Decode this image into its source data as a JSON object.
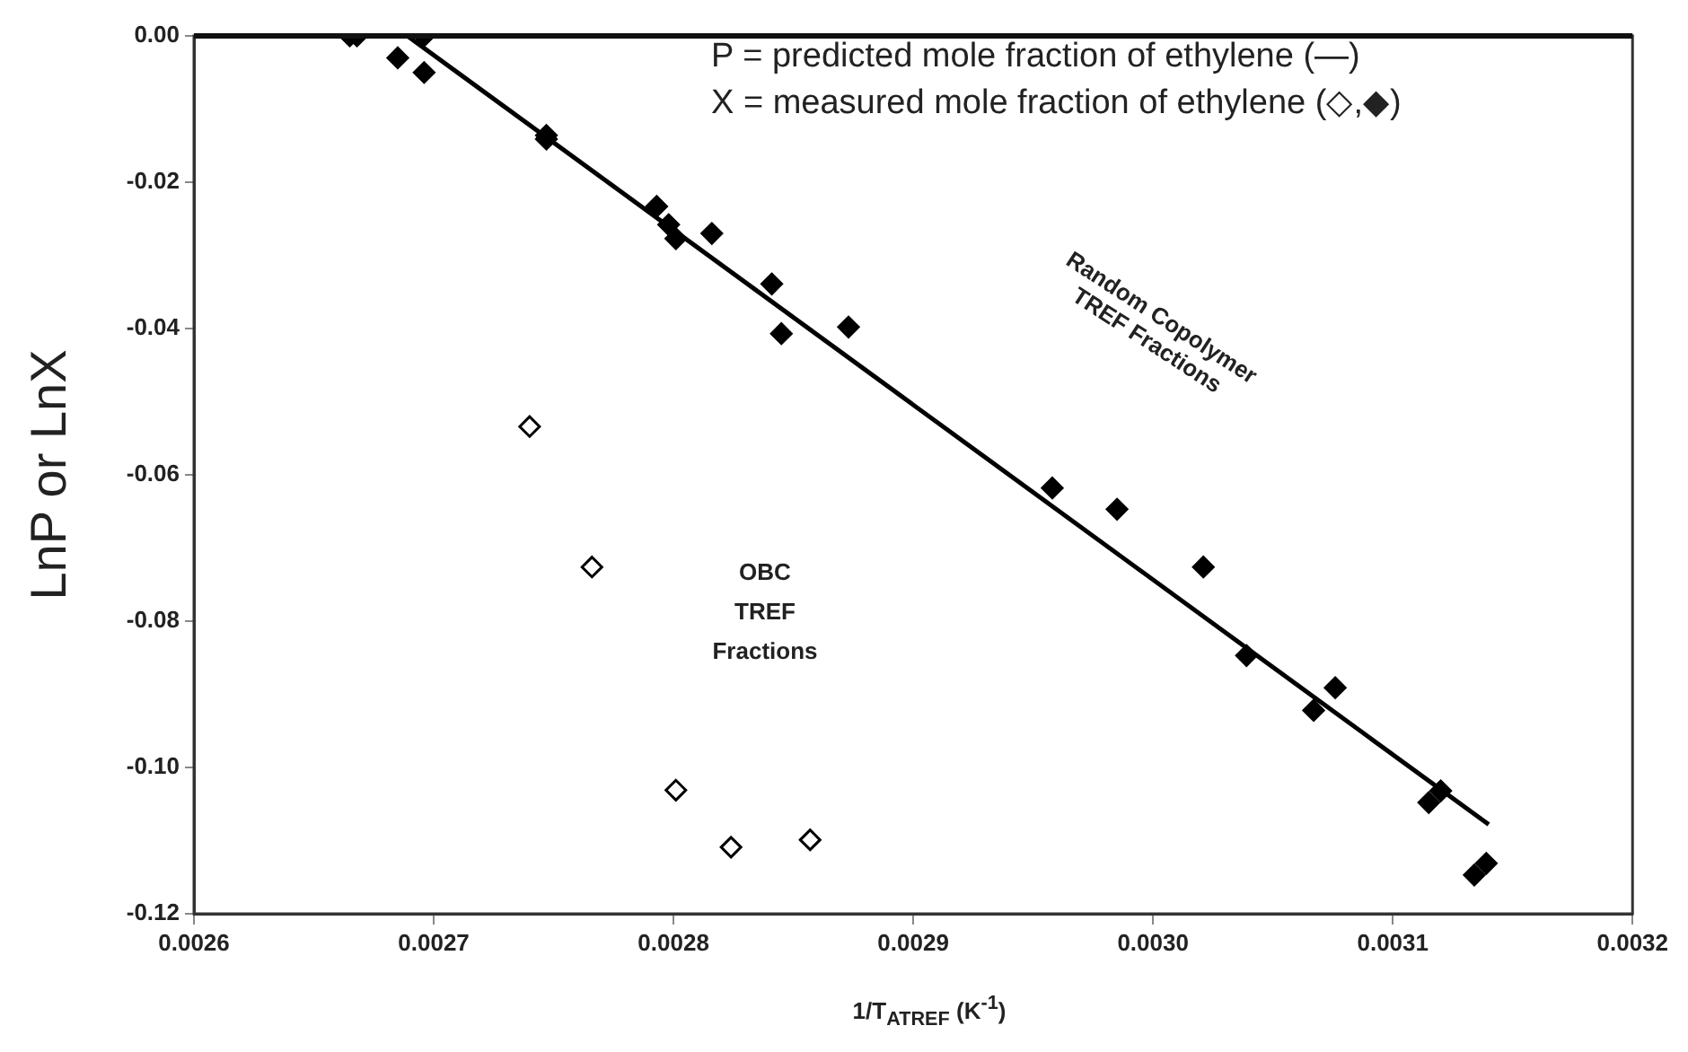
{
  "chart_data": {
    "type": "scatter",
    "ylabel": "LnP or LnX",
    "xlabel": "1/T$_{ATREF}$ (K$^{-1}$)",
    "xlim": [
      0.0026,
      0.0032
    ],
    "xticks": [
      0.0026,
      0.0027,
      0.0028,
      0.0029,
      {
        "value": 0.003,
        "label": "0.0030"
      },
      0.0031,
      0.0032
    ],
    "ylim": [
      -0.12,
      0
    ],
    "yticks": [
      {
        "value": -0.12,
        "label": "-0.12"
      },
      {
        "value": -0.1,
        "label": "-0.10"
      },
      {
        "value": -0.08,
        "label": "-0.08"
      },
      {
        "value": -0.06,
        "label": "-0.06"
      },
      {
        "value": -0.04,
        "label": "-0.04"
      },
      {
        "value": -0.02,
        "label": "-0.02"
      },
      {
        "value": 0,
        "label": "0.00"
      }
    ],
    "grid": false,
    "legend": false,
    "series": [
      {
        "type": "scatter",
        "marker": "diamond",
        "color": "#000000",
        "x": [
          0.002665,
          0.002668,
          0.002696,
          0.002685,
          0.002696,
          0.002747,
          0.002747,
          0.002793,
          0.002798,
          0.002801,
          0.002816,
          0.002841,
          0.002845,
          0.002873,
          0.002958,
          0.002985,
          0.003021,
          0.003039,
          0.003067,
          0.003076,
          0.003115,
          0.00312,
          0.003134,
          0.003139
        ],
        "values": [
          0,
          0,
          0,
          -0.003,
          -0.005,
          -0.0136,
          -0.0141,
          -0.0233,
          -0.0258,
          -0.0277,
          -0.027,
          -0.0339,
          -0.0407,
          -0.0398,
          -0.0618,
          -0.0647,
          -0.0726,
          -0.0847,
          -0.0922,
          -0.0891,
          -0.1048,
          -0.1032,
          -0.1147,
          -0.1131
        ]
      },
      {
        "type": "scatter",
        "marker": "diamond",
        "color": "#000000",
        "x": [
          0.00274,
          0.002766,
          0.002801,
          0.002824,
          0.002857
        ],
        "values": [
          -0.0534,
          -0.0726,
          -0.1031,
          -0.1109,
          -0.1099
        ]
      },
      {
        "type": "line",
        "marker": "none",
        "line_style": "solid",
        "color": "#000000",
        "x": [
          0.002689,
          0.00314
        ],
        "values": [
          0,
          -0.1078
        ]
      }
    ],
    "annotations": [
      "P = predicted mole fraction of ethylene (—)",
      "X = measured mole fraction of ethylene (◇,◆)",
      "Random Copolymer TREF Fractions",
      "OBC TREF Fractions"
    ]
  }
}
